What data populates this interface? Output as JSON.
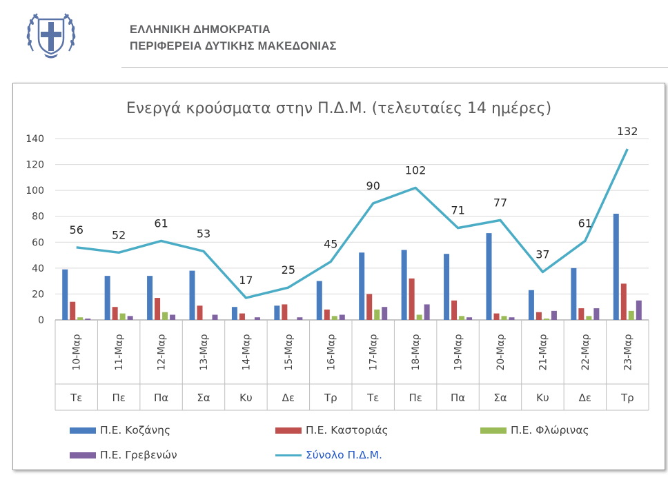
{
  "header": {
    "line1": "ΕΛΛΗΝΙΚΗ ΔΗΜΟΚΡΑΤΙΑ",
    "line2": "ΠΕΡΙΦΕΡΕΙΑ ΔΥΤΙΚΗΣ ΜΑΚΕΔΟΝΙΑΣ"
  },
  "colors": {
    "kozani": "#4a7dbf",
    "kastoria": "#c0504d",
    "florina": "#9bbb59",
    "grevena": "#8064a2",
    "total": "#4bacc6",
    "total_label": "#1f56c9",
    "emblem": "#5a74a8"
  },
  "chart_data": {
    "type": "bar",
    "title": "Ενεργά κρούσματα στην Π.Δ.Μ. (τελευταίες 14 ημέρες)",
    "categories": [
      "10-Μαρ",
      "11-Μαρ",
      "12-Μαρ",
      "13-Μαρ",
      "14-Μαρ",
      "15-Μαρ",
      "16-Μαρ",
      "17-Μαρ",
      "18-Μαρ",
      "19-Μαρ",
      "20-Μαρ",
      "21-Μαρ",
      "22-Μαρ",
      "23-Μαρ"
    ],
    "weekdays": [
      "Τε",
      "Πε",
      "Πα",
      "Σα",
      "Κυ",
      "Δε",
      "Τρ",
      "Τε",
      "Πε",
      "Πα",
      "Σα",
      "Κυ",
      "Δε",
      "Τρ"
    ],
    "ylim": [
      0,
      140
    ],
    "yticks": [
      0,
      20,
      40,
      60,
      80,
      100,
      120,
      140
    ],
    "grid": true,
    "legend_position": "bottom",
    "series": [
      {
        "name": "Π.Ε. Κοζάνης",
        "type": "bar",
        "values": [
          39,
          34,
          34,
          38,
          10,
          11,
          30,
          52,
          54,
          51,
          67,
          23,
          40,
          82
        ]
      },
      {
        "name": "Π.Ε. Καστοριάς",
        "type": "bar",
        "values": [
          14,
          10,
          17,
          11,
          5,
          12,
          8,
          20,
          32,
          15,
          5,
          6,
          9,
          28
        ]
      },
      {
        "name": "Π.Ε. Φλώρινας",
        "type": "bar",
        "values": [
          2,
          5,
          6,
          0,
          0,
          0,
          3,
          8,
          4,
          3,
          3,
          1,
          3,
          7
        ]
      },
      {
        "name": "Π.Ε. Γρεβενών",
        "type": "bar",
        "values": [
          1,
          3,
          4,
          4,
          2,
          2,
          4,
          10,
          12,
          2,
          2,
          7,
          9,
          15
        ]
      },
      {
        "name": "Σύνολο Π.Δ.Μ.",
        "type": "line",
        "values": [
          56,
          52,
          61,
          53,
          17,
          25,
          45,
          90,
          102,
          71,
          77,
          37,
          61,
          132
        ],
        "data_labels": true
      }
    ]
  }
}
